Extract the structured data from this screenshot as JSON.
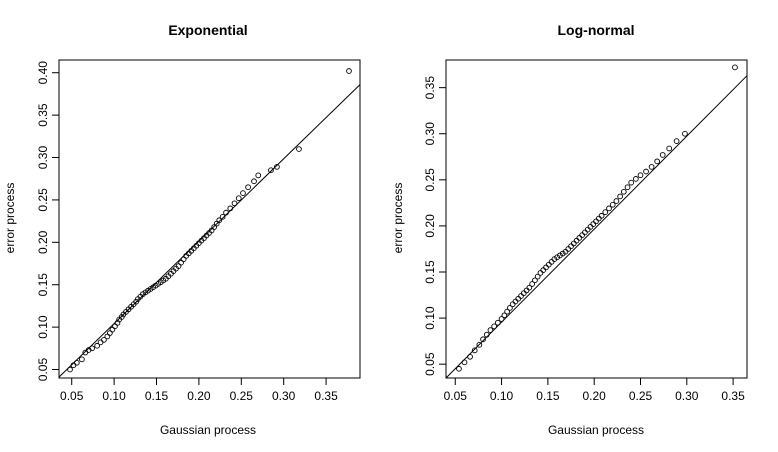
{
  "chart_data": [
    {
      "type": "scatter",
      "title": "Exponential",
      "xlabel": "Gaussian process",
      "ylabel": "error process",
      "xlim": [
        0.035,
        0.39
      ],
      "ylim": [
        0.04,
        0.415
      ],
      "xticks": [
        "0.05",
        "0.10",
        "0.15",
        "0.20",
        "0.25",
        "0.30",
        "0.35"
      ],
      "yticks": [
        "0.05",
        "0.10",
        "0.15",
        "0.20",
        "0.25",
        "0.30",
        "0.35",
        "0.40"
      ],
      "grid": false,
      "legend": "none",
      "reference_line": {
        "x": [
          0.035,
          0.39
        ],
        "y": [
          0.041,
          0.386
        ]
      },
      "points": {
        "x": [
          0.048,
          0.052,
          0.056,
          0.062,
          0.066,
          0.07,
          0.074,
          0.08,
          0.084,
          0.088,
          0.092,
          0.095,
          0.098,
          0.101,
          0.104,
          0.106,
          0.109,
          0.111,
          0.114,
          0.117,
          0.12,
          0.123,
          0.126,
          0.128,
          0.131,
          0.134,
          0.137,
          0.14,
          0.143,
          0.146,
          0.149,
          0.152,
          0.155,
          0.158,
          0.161,
          0.164,
          0.167,
          0.17,
          0.173,
          0.176,
          0.179,
          0.182,
          0.185,
          0.188,
          0.191,
          0.194,
          0.197,
          0.2,
          0.203,
          0.206,
          0.209,
          0.212,
          0.215,
          0.218,
          0.221,
          0.224,
          0.228,
          0.232,
          0.237,
          0.242,
          0.247,
          0.252,
          0.258,
          0.265,
          0.27,
          0.285,
          0.292,
          0.318,
          0.377
        ],
        "y": [
          0.05,
          0.055,
          0.058,
          0.062,
          0.07,
          0.073,
          0.075,
          0.078,
          0.082,
          0.085,
          0.089,
          0.093,
          0.097,
          0.101,
          0.105,
          0.109,
          0.112,
          0.115,
          0.118,
          0.121,
          0.124,
          0.127,
          0.13,
          0.133,
          0.136,
          0.139,
          0.141,
          0.143,
          0.145,
          0.147,
          0.149,
          0.151,
          0.153,
          0.155,
          0.157,
          0.16,
          0.163,
          0.166,
          0.169,
          0.172,
          0.176,
          0.18,
          0.184,
          0.187,
          0.19,
          0.193,
          0.196,
          0.199,
          0.202,
          0.205,
          0.208,
          0.211,
          0.214,
          0.218,
          0.222,
          0.226,
          0.23,
          0.235,
          0.24,
          0.246,
          0.252,
          0.258,
          0.265,
          0.272,
          0.279,
          0.285,
          0.289,
          0.31,
          0.402
        ]
      }
    },
    {
      "type": "scatter",
      "title": "Log-normal",
      "xlabel": "Gaussian process",
      "ylabel": "error process",
      "xlim": [
        0.04,
        0.365
      ],
      "ylim": [
        0.035,
        0.38
      ],
      "xticks": [
        "0.05",
        "0.10",
        "0.15",
        "0.20",
        "0.25",
        "0.30",
        "0.35"
      ],
      "yticks": [
        "0.05",
        "0.10",
        "0.15",
        "0.20",
        "0.25",
        "0.30",
        "0.35"
      ],
      "grid": false,
      "legend": "none",
      "reference_line": {
        "x": [
          0.04,
          0.365
        ],
        "y": [
          0.035,
          0.363
        ]
      },
      "points": {
        "x": [
          0.054,
          0.06,
          0.066,
          0.071,
          0.076,
          0.08,
          0.084,
          0.088,
          0.092,
          0.096,
          0.1,
          0.103,
          0.106,
          0.109,
          0.112,
          0.115,
          0.118,
          0.121,
          0.124,
          0.127,
          0.13,
          0.133,
          0.136,
          0.139,
          0.142,
          0.145,
          0.148,
          0.151,
          0.154,
          0.157,
          0.16,
          0.163,
          0.166,
          0.169,
          0.172,
          0.175,
          0.178,
          0.181,
          0.184,
          0.187,
          0.19,
          0.193,
          0.196,
          0.199,
          0.202,
          0.205,
          0.208,
          0.212,
          0.216,
          0.22,
          0.224,
          0.228,
          0.232,
          0.236,
          0.24,
          0.245,
          0.25,
          0.256,
          0.262,
          0.268,
          0.274,
          0.281,
          0.289,
          0.298,
          0.352
        ],
        "y": [
          0.045,
          0.052,
          0.058,
          0.065,
          0.071,
          0.077,
          0.082,
          0.087,
          0.091,
          0.095,
          0.099,
          0.103,
          0.107,
          0.111,
          0.115,
          0.118,
          0.121,
          0.124,
          0.127,
          0.13,
          0.133,
          0.137,
          0.141,
          0.145,
          0.149,
          0.152,
          0.155,
          0.158,
          0.161,
          0.164,
          0.166,
          0.168,
          0.17,
          0.172,
          0.175,
          0.178,
          0.181,
          0.184,
          0.187,
          0.19,
          0.193,
          0.196,
          0.199,
          0.202,
          0.205,
          0.208,
          0.211,
          0.215,
          0.219,
          0.223,
          0.227,
          0.232,
          0.237,
          0.242,
          0.247,
          0.251,
          0.255,
          0.259,
          0.264,
          0.27,
          0.277,
          0.284,
          0.292,
          0.3,
          0.372
        ]
      }
    }
  ]
}
